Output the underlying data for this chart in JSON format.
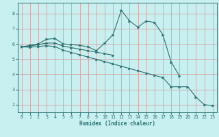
{
  "xlabel": "Humidex (Indice chaleur)",
  "x": [
    0,
    1,
    2,
    3,
    4,
    5,
    6,
    7,
    8,
    9,
    10,
    11,
    12,
    13,
    14,
    15,
    16,
    17,
    18,
    19,
    20,
    21,
    22,
    23
  ],
  "line1": [
    5.8,
    5.9,
    6.0,
    6.3,
    6.35,
    6.0,
    5.95,
    5.9,
    5.8,
    5.55,
    6.05,
    6.6,
    8.2,
    7.5,
    7.1,
    7.5,
    7.4,
    6.6,
    4.8,
    3.9,
    null,
    null,
    null,
    null
  ],
  "line2": [
    5.8,
    5.85,
    5.95,
    6.05,
    6.05,
    5.85,
    5.75,
    5.65,
    5.55,
    5.45,
    5.35,
    5.25,
    null,
    null,
    null,
    null,
    null,
    null,
    null,
    null,
    null,
    null,
    null,
    null
  ],
  "line3": [
    5.8,
    5.78,
    5.82,
    5.88,
    5.82,
    5.58,
    5.43,
    5.28,
    5.13,
    4.98,
    4.83,
    4.68,
    4.53,
    4.38,
    4.23,
    4.08,
    3.93,
    3.78,
    3.18,
    3.18,
    3.18,
    2.5,
    2.0,
    1.95
  ],
  "bg_color": "#c8f0f0",
  "grid_color": "#d4a0a0",
  "line_color": "#2a7070",
  "ylim": [
    1.5,
    8.7
  ],
  "xlim": [
    -0.5,
    23.5
  ],
  "yticks": [
    2,
    3,
    4,
    5,
    6,
    7,
    8
  ],
  "xticks": [
    0,
    1,
    2,
    3,
    4,
    5,
    6,
    7,
    8,
    9,
    10,
    11,
    12,
    13,
    14,
    15,
    16,
    17,
    18,
    19,
    20,
    21,
    22,
    23
  ]
}
